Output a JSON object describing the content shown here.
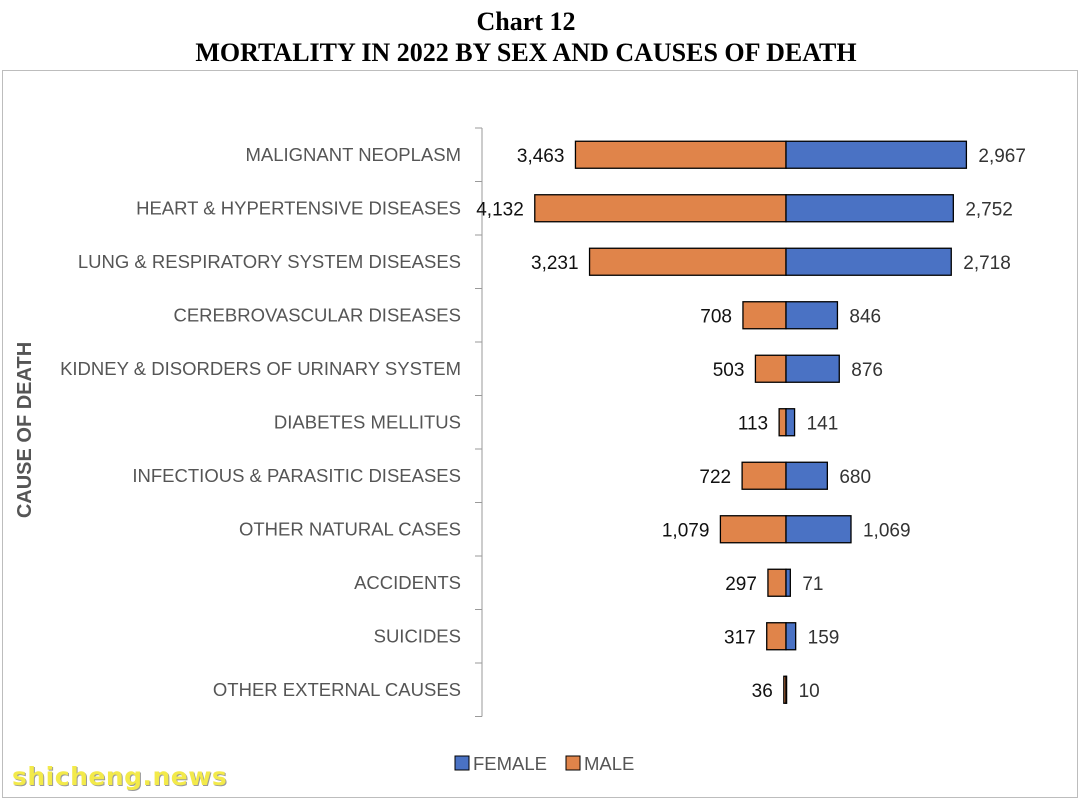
{
  "header": {
    "chart_number": "Chart 12",
    "title": "MORTALITY IN 2022 BY SEX AND CAUSES OF DEATH"
  },
  "watermark": "shicheng.news",
  "colors": {
    "female": "#4a72c4",
    "male": "#e0844a",
    "axis": "#9a9a9a",
    "label": "#555555"
  },
  "chart_data": {
    "type": "bar",
    "orientation": "horizontal-diverging",
    "title": "MORTALITY IN 2022 BY SEX AND CAUSES OF DEATH",
    "ylabel": "CAUSE OF DEATH",
    "xlabel": "",
    "categories": [
      "MALIGNANT NEOPLASM",
      "HEART & HYPERTENSIVE DISEASES",
      "LUNG & RESPIRATORY SYSTEM DISEASES",
      "CEREBROVASCULAR DISEASES",
      "KIDNEY & DISORDERS OF URINARY SYSTEM",
      "DIABETES MELLITUS",
      "INFECTIOUS & PARASITIC DISEASES",
      "OTHER NATURAL CASES",
      "ACCIDENTS",
      "SUICIDES",
      "OTHER EXTERNAL CAUSES"
    ],
    "series": [
      {
        "name": "FEMALE",
        "color": "#4a72c4",
        "values": [
          2967,
          2752,
          2718,
          846,
          876,
          141,
          680,
          1069,
          71,
          159,
          10
        ],
        "labels": [
          "2,967",
          "2,752",
          "2,718",
          "846",
          "876",
          "141",
          "680",
          "1,069",
          "71",
          "159",
          "10"
        ]
      },
      {
        "name": "MALE",
        "color": "#e0844a",
        "values": [
          3463,
          4132,
          3231,
          708,
          503,
          113,
          722,
          1079,
          297,
          317,
          36
        ],
        "labels": [
          "3,463",
          "4,132",
          "3,231",
          "708",
          "503",
          "113",
          "722",
          "1,079",
          "297",
          "317",
          "36"
        ]
      }
    ],
    "legend": {
      "position": "bottom",
      "items": [
        "FEMALE",
        "MALE"
      ]
    },
    "grid": false
  }
}
